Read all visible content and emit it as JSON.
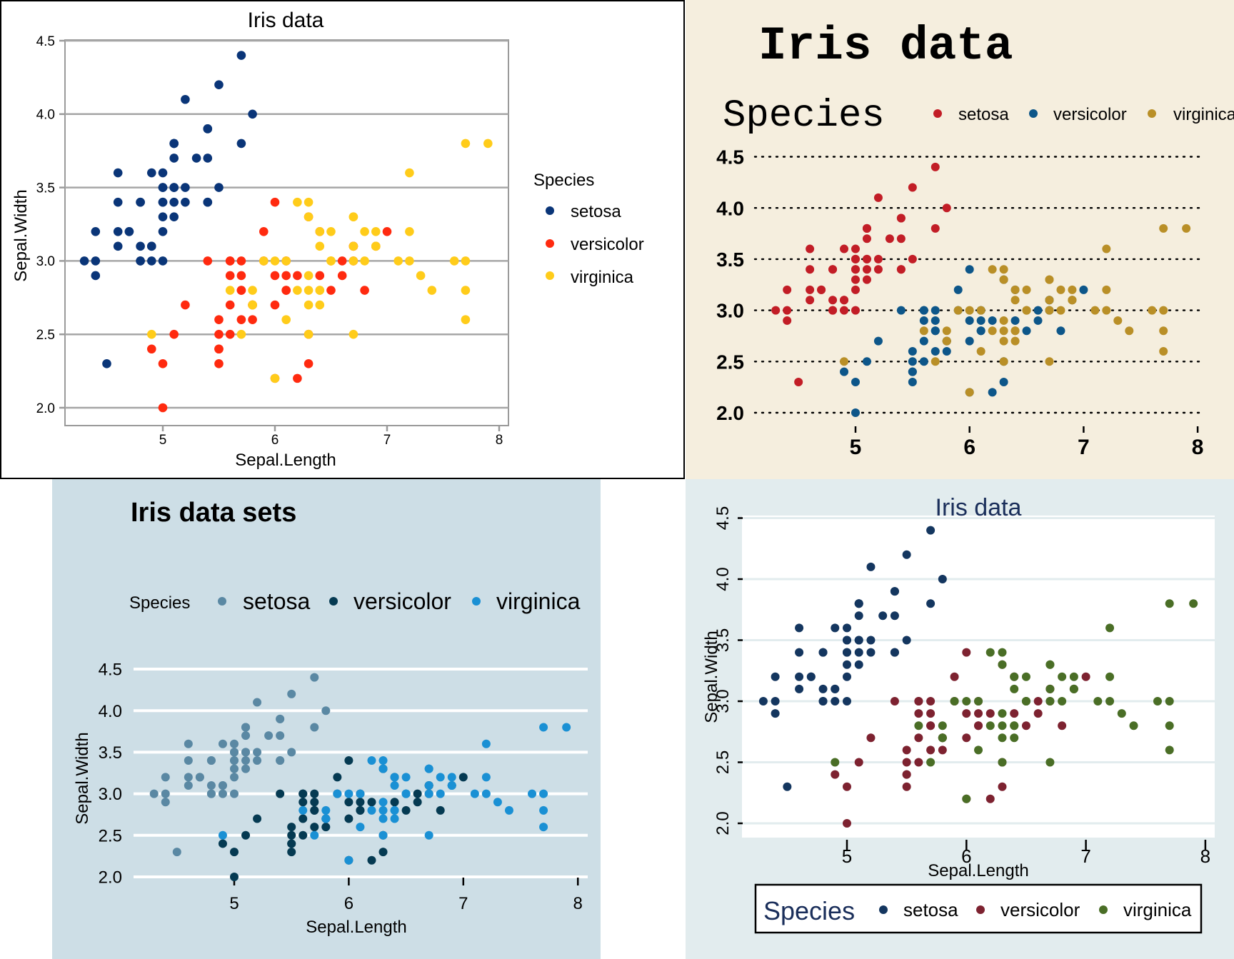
{
  "chart_data": [
    {
      "type": "scatter",
      "panel": "top-left",
      "title": "Iris data",
      "xlabel": "Sepal.Length",
      "ylabel": "Sepal.Width",
      "xlim": [
        4.2,
        8.1
      ],
      "ylim": [
        1.9,
        4.5
      ],
      "xticks": [
        "5",
        "6",
        "7",
        "8"
      ],
      "yticks": [
        "2.0",
        "2.5",
        "3.0",
        "3.5",
        "4.0",
        "4.5"
      ],
      "grid": "horizontal",
      "legend": {
        "title": "Species",
        "placement": "right"
      },
      "series_names": [
        "setosa",
        "versicolor",
        "virginica"
      ],
      "colors": {
        "setosa": "#0a3578",
        "versicolor": "#ff2a0f",
        "virginica": "#ffcc1a"
      },
      "background": "#ffffff"
    },
    {
      "type": "scatter",
      "panel": "top-right",
      "title": "Iris data",
      "xlabel": "",
      "ylabel": "",
      "xlim": [
        4.2,
        8.1
      ],
      "ylim": [
        2.0,
        4.5
      ],
      "xticks": [
        "5",
        "6",
        "7",
        "8"
      ],
      "yticks": [
        "2.0",
        "2.5",
        "3.0",
        "3.5",
        "4.0",
        "4.5"
      ],
      "grid": "horizontal-dotted",
      "legend": {
        "title": "Species",
        "placement": "top"
      },
      "series_names": [
        "setosa",
        "versicolor",
        "virginica"
      ],
      "colors": {
        "setosa": "#c21d26",
        "versicolor": "#0d5689",
        "virginica": "#b98f27"
      },
      "background": "#f5eede"
    },
    {
      "type": "scatter",
      "panel": "bottom-left",
      "title": "Iris data sets",
      "xlabel": "Sepal.Length",
      "ylabel": "Sepal.Width",
      "xlim": [
        4.2,
        8.1
      ],
      "ylim": [
        2.0,
        4.5
      ],
      "xticks": [
        "5",
        "6",
        "7",
        "8"
      ],
      "yticks": [
        "2.0",
        "2.5",
        "3.0",
        "3.5",
        "4.0",
        "4.5"
      ],
      "grid": "horizontal",
      "legend": {
        "title": "Species",
        "placement": "top"
      },
      "series_names": [
        "setosa",
        "versicolor",
        "virginica"
      ],
      "colors": {
        "setosa": "#5a88a3",
        "versicolor": "#053a52",
        "virginica": "#1a90d4"
      },
      "background": "#cddee6"
    },
    {
      "type": "scatter",
      "panel": "bottom-right",
      "title": "Iris data",
      "xlabel": "Sepal.Length",
      "ylabel": "Sepal.Width",
      "xlim": [
        4.2,
        8.1
      ],
      "ylim": [
        1.9,
        4.5
      ],
      "xticks": [
        "5",
        "6",
        "7",
        "8"
      ],
      "yticks": [
        "2.0",
        "2.5",
        "3.0",
        "3.5",
        "4.0",
        "4.5"
      ],
      "grid": "horizontal",
      "legend": {
        "title": "Species",
        "placement": "bottom"
      },
      "series_names": [
        "setosa",
        "versicolor",
        "virginica"
      ],
      "colors": {
        "setosa": "#14365f",
        "versicolor": "#7d2230",
        "virginica": "#4a6e26"
      },
      "background": "#e2ecee"
    }
  ],
  "iris": {
    "setosa": {
      "x": [
        5.1,
        4.9,
        4.7,
        4.6,
        5.0,
        5.4,
        4.6,
        5.0,
        4.4,
        4.9,
        5.4,
        4.8,
        4.8,
        4.3,
        5.8,
        5.7,
        5.4,
        5.1,
        5.7,
        5.1,
        5.4,
        5.1,
        4.6,
        5.1,
        4.8,
        5.0,
        5.0,
        5.2,
        5.2,
        4.7,
        4.8,
        5.4,
        5.2,
        5.5,
        4.9,
        5.0,
        5.5,
        4.9,
        4.4,
        5.1,
        5.0,
        4.5,
        4.4,
        5.0,
        5.1,
        4.8,
        5.1,
        4.6,
        5.3,
        5.0
      ],
      "y": [
        3.5,
        3.0,
        3.2,
        3.1,
        3.6,
        3.9,
        3.4,
        3.4,
        2.9,
        3.1,
        3.7,
        3.4,
        3.0,
        3.0,
        4.0,
        4.4,
        3.9,
        3.5,
        3.8,
        3.8,
        3.4,
        3.7,
        3.6,
        3.3,
        3.4,
        3.0,
        3.4,
        3.5,
        3.4,
        3.2,
        3.1,
        3.4,
        4.1,
        4.2,
        3.1,
        3.2,
        3.5,
        3.6,
        3.0,
        3.4,
        3.5,
        2.3,
        3.2,
        3.5,
        3.8,
        3.0,
        3.8,
        3.2,
        3.7,
        3.3
      ]
    },
    "versicolor": {
      "x": [
        7.0,
        6.4,
        6.9,
        5.5,
        6.5,
        5.7,
        6.3,
        4.9,
        6.6,
        5.2,
        5.0,
        5.9,
        6.0,
        6.1,
        5.6,
        6.7,
        5.6,
        5.8,
        6.2,
        5.6,
        5.9,
        6.1,
        6.3,
        6.1,
        6.4,
        6.6,
        6.8,
        6.7,
        6.0,
        5.7,
        5.5,
        5.5,
        5.8,
        6.0,
        5.4,
        6.0,
        6.7,
        6.3,
        5.6,
        5.5,
        5.5,
        6.1,
        5.8,
        5.0,
        5.6,
        5.7,
        5.7,
        6.2,
        5.1,
        5.7
      ],
      "y": [
        3.2,
        3.2,
        3.1,
        2.3,
        2.8,
        2.8,
        3.3,
        2.4,
        2.9,
        2.7,
        2.0,
        3.0,
        2.2,
        2.9,
        2.9,
        3.1,
        3.0,
        2.7,
        2.2,
        2.5,
        3.2,
        2.8,
        2.5,
        2.8,
        2.9,
        3.0,
        2.8,
        3.0,
        2.9,
        2.6,
        2.4,
        2.4,
        2.7,
        2.7,
        3.0,
        3.4,
        3.1,
        2.3,
        3.0,
        2.5,
        2.6,
        3.0,
        2.6,
        2.3,
        2.7,
        3.0,
        2.9,
        2.9,
        2.5,
        2.8
      ]
    },
    "virginica": {
      "x": [
        6.3,
        5.8,
        7.1,
        6.3,
        6.5,
        7.6,
        4.9,
        7.3,
        6.7,
        7.2,
        6.5,
        6.4,
        6.8,
        5.7,
        5.8,
        6.4,
        6.5,
        7.7,
        7.7,
        6.0,
        6.9,
        5.6,
        7.7,
        6.3,
        6.7,
        7.2,
        6.2,
        6.1,
        6.4,
        7.2,
        7.4,
        7.9,
        6.4,
        6.3,
        6.1,
        7.7,
        6.3,
        6.4,
        6.0,
        6.9,
        6.7,
        6.9,
        5.8,
        6.8,
        6.7,
        6.7,
        6.3,
        6.5,
        6.2,
        5.9
      ],
      "y": [
        3.3,
        2.7,
        3.0,
        2.9,
        3.0,
        3.0,
        2.5,
        2.9,
        2.5,
        3.6,
        3.2,
        2.7,
        3.0,
        2.5,
        2.8,
        3.2,
        3.0,
        3.8,
        2.6,
        2.2,
        3.2,
        2.8,
        2.8,
        2.7,
        3.3,
        3.2,
        2.8,
        3.0,
        2.8,
        3.0,
        2.8,
        3.8,
        2.8,
        2.8,
        2.6,
        3.0,
        3.4,
        3.1,
        3.0,
        3.1,
        3.1,
        3.1,
        2.7,
        3.2,
        3.3,
        3.0,
        2.5,
        3.0,
        3.4,
        3.0
      ]
    }
  }
}
